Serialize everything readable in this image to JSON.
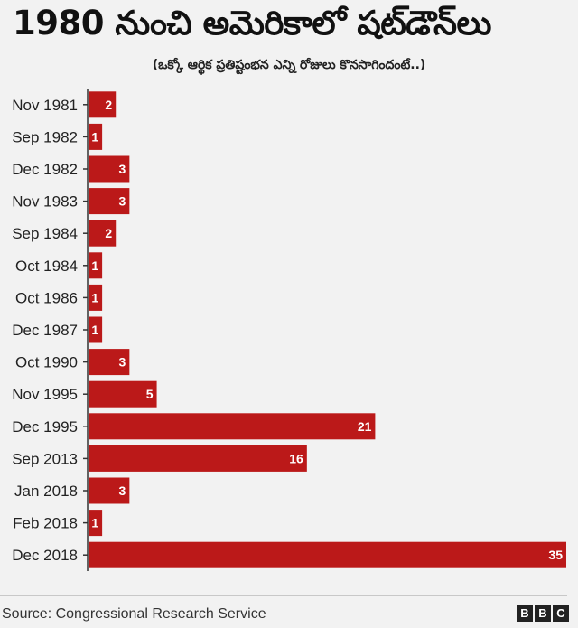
{
  "title": "1980 నుంచి అమెరికాలో షట్‌డౌన్‌లు",
  "subtitle": "(ఒక్కో ఆర్థిక ప్రతిష్టంభన ఎన్ని రోజులు కొనసాగిందంటే..)",
  "source": "Source: Congressional Research Service",
  "logo": [
    "B",
    "B",
    "C"
  ],
  "colors": {
    "bar": "#bb1919",
    "axis": "#333333",
    "background": "#f2f2f2"
  },
  "chart_data": {
    "type": "bar",
    "orientation": "horizontal",
    "title": "1980 నుంచి అమెరికాలో షట్‌డౌన్‌లు",
    "xlabel": "",
    "ylabel": "",
    "xlim": [
      0,
      35
    ],
    "grid": false,
    "categories": [
      "Nov 1981",
      "Sep 1982",
      "Dec 1982",
      "Nov 1983",
      "Sep 1984",
      "Oct 1984",
      "Oct 1986",
      "Dec 1987",
      "Oct 1990",
      "Nov 1995",
      "Dec 1995",
      "Sep 2013",
      "Jan 2018",
      "Feb 2018",
      "Dec 2018"
    ],
    "values": [
      2,
      1,
      3,
      3,
      2,
      1,
      1,
      1,
      3,
      5,
      21,
      16,
      3,
      1,
      35
    ]
  }
}
